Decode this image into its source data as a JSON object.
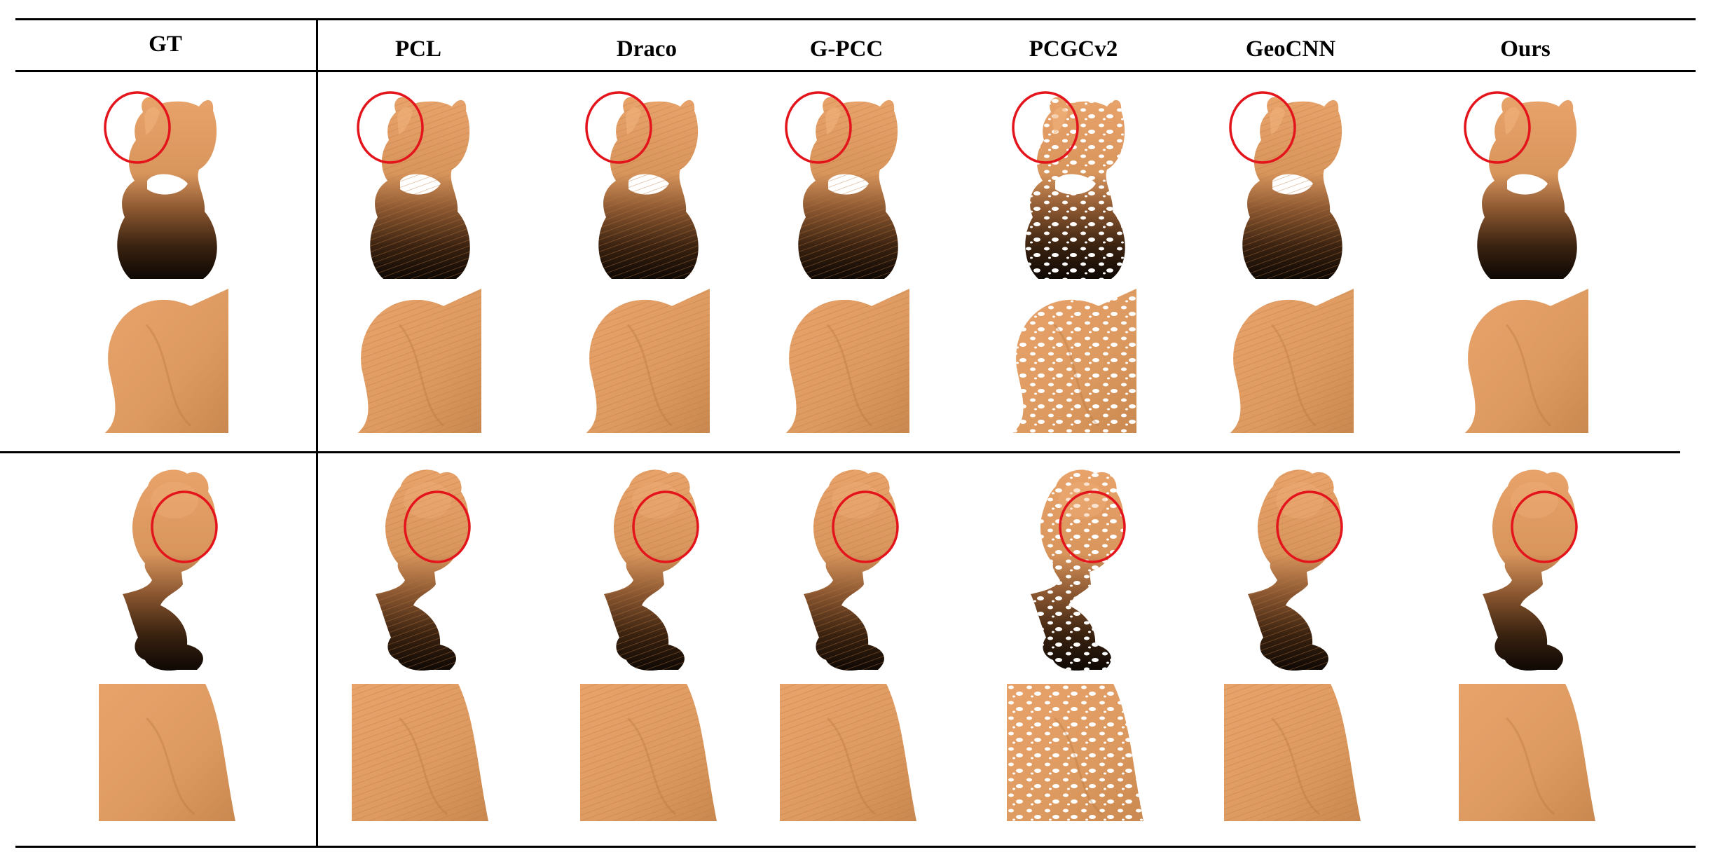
{
  "table": {
    "columns": [
      {
        "id": "gt",
        "label": "GT"
      },
      {
        "id": "pcl",
        "label": "PCL"
      },
      {
        "id": "draco",
        "label": "Draco"
      },
      {
        "id": "gpcc",
        "label": "G-PCC"
      },
      {
        "id": "pcgcv2",
        "label": "PCGCv2"
      },
      {
        "id": "geocnn",
        "label": "GeoCNN"
      },
      {
        "id": "ours",
        "label": "Ours"
      }
    ],
    "rows": [
      {
        "id": "cat",
        "subject": "cat-figurine point cloud"
      },
      {
        "id": "bust",
        "subject": "bust point cloud"
      }
    ]
  },
  "colors": {
    "surface_light": "#e8a36b",
    "surface_mid": "#c9884f",
    "surface_dark": "#0e0804",
    "highlight_circle": "#e3141c",
    "rule": "#000000",
    "background": "#ffffff"
  }
}
